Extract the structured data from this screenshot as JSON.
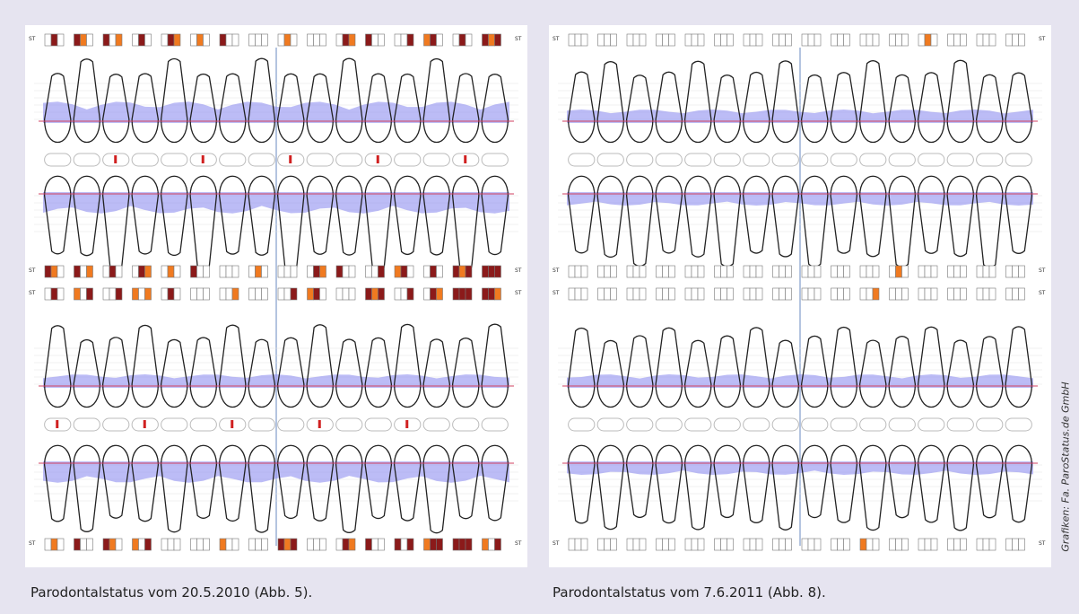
{
  "figures": [
    {
      "caption_title": "Parodontalstatus",
      "caption_rest": "vom 20.5.2010 (Abb. 5)."
    },
    {
      "caption_title": "Parodontalstatus",
      "caption_rest": "vom 7.6.2011 (Abb. 8)."
    }
  ],
  "row_label": "ST",
  "credit": "Grafiken: Fa. ParoStatus.de GmbH"
}
